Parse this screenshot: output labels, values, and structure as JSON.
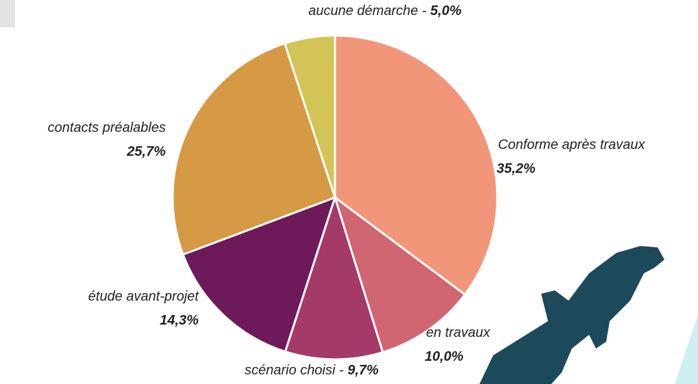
{
  "chart_data": {
    "type": "pie",
    "categories": [
      "Conforme après travaux",
      "en travaux",
      "scénario choisi",
      "étude avant-projet",
      "contacts préalables",
      "aucune démarche"
    ],
    "values": [
      35.2,
      10.0,
      9.7,
      14.3,
      25.7,
      5.0
    ],
    "value_labels": [
      "35,2%",
      "10,0%",
      "9,7%",
      "14,3%",
      "25,7%",
      "5,0%"
    ],
    "colors": [
      "#f2967a",
      "#d06672",
      "#a33a68",
      "#6e1a5a",
      "#d69a45",
      "#d2c455"
    ]
  }
}
